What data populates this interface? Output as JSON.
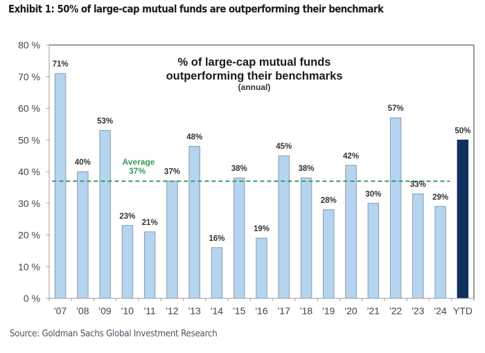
{
  "exhibit_title": "Exhibit 1: 50% of large-cap mutual funds are outperforming their benchmark",
  "source": "Source: Goldman Sachs Global Investment Research",
  "colors": {
    "bar": "#b4d4f0",
    "bar_border": "#8a9aab",
    "highlight_bar": "#10305e",
    "average_line": "#3a9a5a",
    "frame": "#7a7a7a"
  },
  "chart_data": {
    "type": "bar",
    "title": "% of large-cap mutual funds outperforming their benchmarks",
    "title_lines": [
      "% of large-cap mutual funds",
      "outperforming their benchmarks"
    ],
    "subtitle": "(annual)",
    "xlabel": "",
    "ylabel": "",
    "ylim": [
      0,
      80
    ],
    "yticks": [
      0,
      10,
      20,
      30,
      40,
      50,
      60,
      70,
      80
    ],
    "ytick_labels": [
      "0 %",
      "10 %",
      "20 %",
      "30 %",
      "40 %",
      "50 %",
      "60 %",
      "70 %",
      "80 %"
    ],
    "grid": false,
    "categories": [
      "'07",
      "'08",
      "'09",
      "'10",
      "'11",
      "'12",
      "'13",
      "'14",
      "'15",
      "'16",
      "'17",
      "'18",
      "'19",
      "'20",
      "'21",
      "'22",
      "'23",
      "'24",
      "YTD"
    ],
    "values": [
      71,
      40,
      53,
      23,
      21,
      37,
      48,
      16,
      38,
      19,
      45,
      38,
      28,
      42,
      30,
      57,
      33,
      29,
      50
    ],
    "data_labels": [
      "71%",
      "40%",
      "53%",
      "23%",
      "21%",
      "37%",
      "48%",
      "16%",
      "38%",
      "19%",
      "45%",
      "38%",
      "28%",
      "42%",
      "30%",
      "57%",
      "33%",
      "29%",
      "50%"
    ],
    "highlight_category": "YTD",
    "reference_line": {
      "value": 37,
      "label_line1": "Average",
      "label_line2": "37%",
      "style": "dashed",
      "spans": "'07 to '24"
    }
  }
}
